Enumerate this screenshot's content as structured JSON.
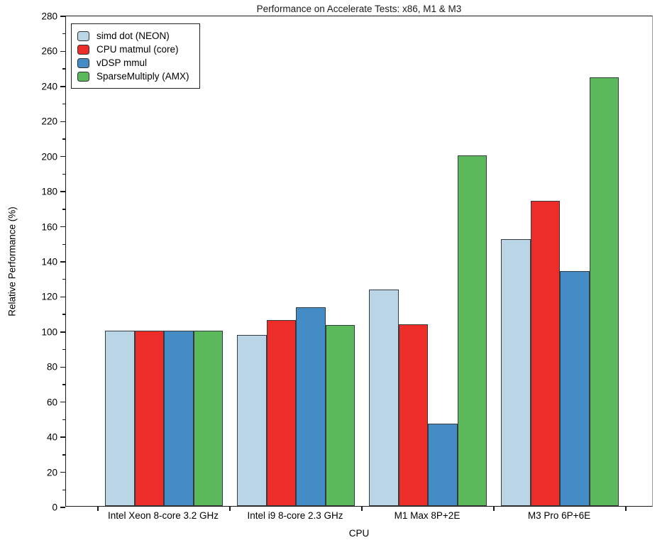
{
  "chart_data": {
    "type": "bar",
    "title": "Performance on Accelerate Tests: x86, M1 & M3",
    "xlabel": "CPU",
    "ylabel": "Relative Performance (%)",
    "ylim": [
      0,
      280
    ],
    "ytick_labels": [
      "0",
      "20",
      "40",
      "60",
      "80",
      "100",
      "120",
      "140",
      "160",
      "180",
      "200",
      "220",
      "240",
      "260",
      "280"
    ],
    "ytick_values": [
      0,
      20,
      40,
      60,
      80,
      100,
      120,
      140,
      160,
      180,
      200,
      220,
      240,
      260,
      280
    ],
    "minor_tick_step": 10,
    "grid": false,
    "legend_position": "upper-left",
    "categories": [
      "Intel Xeon 8-core 3.2 GHz",
      "Intel i9 8-core 2.3 GHz",
      "M1 Max 8P+2E",
      "M3 Pro 6P+6E"
    ],
    "series": [
      {
        "name": "simd dot (NEON)",
        "color": "#b9d5e6",
        "values": [
          100,
          97.5,
          123.5,
          152
        ]
      },
      {
        "name": "CPU matmul (core)",
        "color": "#ed2d27",
        "values": [
          100,
          106,
          103.5,
          174
        ]
      },
      {
        "name": "vDSP mmul",
        "color": "#448cc6",
        "values": [
          100,
          113.5,
          47,
          134
        ]
      },
      {
        "name": "SparseMultiply (AMX)",
        "color": "#5bb95c",
        "values": [
          100,
          103,
          200,
          244.5
        ]
      }
    ]
  }
}
